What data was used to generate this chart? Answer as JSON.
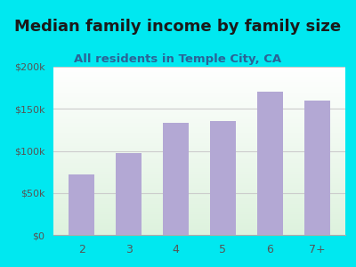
{
  "title": "Median family income by family size",
  "subtitle": "All residents in Temple City, CA",
  "categories": [
    "2",
    "3",
    "4",
    "5",
    "6",
    "7+"
  ],
  "values": [
    72000,
    97000,
    133000,
    135000,
    170000,
    160000
  ],
  "bar_color": "#b3a8d4",
  "ylim": [
    0,
    200000
  ],
  "yticks": [
    0,
    50000,
    100000,
    150000,
    200000
  ],
  "ytick_labels": [
    "$0",
    "$50k",
    "$100k",
    "$150k",
    "$200k"
  ],
  "bg_outer": "#00e8f0",
  "title_color": "#1a1a1a",
  "subtitle_color": "#2a6496",
  "tick_color": "#555555",
  "grid_color": "#cccccc",
  "title_fontsize": 13,
  "subtitle_fontsize": 9.5
}
